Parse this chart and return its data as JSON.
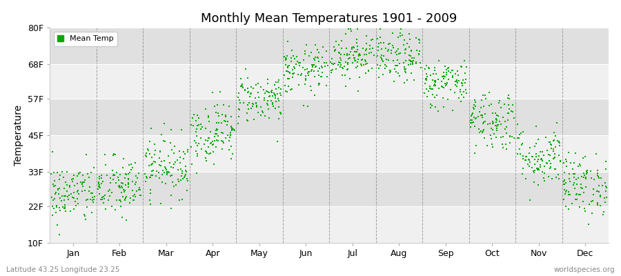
{
  "title": "Monthly Mean Temperatures 1901 - 2009",
  "ylabel": "Temperature",
  "xlabel_bottom_left": "Latitude 43.25 Longitude 23.25",
  "xlabel_bottom_right": "worldspecies.org",
  "ytick_labels": [
    "10F",
    "22F",
    "33F",
    "45F",
    "57F",
    "68F",
    "80F"
  ],
  "ytick_values": [
    10,
    22,
    33,
    45,
    57,
    68,
    80
  ],
  "months": [
    "Jan",
    "Feb",
    "Mar",
    "Apr",
    "May",
    "Jun",
    "Jul",
    "Aug",
    "Sep",
    "Oct",
    "Nov",
    "Dec"
  ],
  "month_positions": [
    0.5,
    1.5,
    2.5,
    3.5,
    4.5,
    5.5,
    6.5,
    7.5,
    8.5,
    9.5,
    10.5,
    11.5
  ],
  "dot_color": "#00aa00",
  "background_color": "#f0f0f0",
  "band_color_dark": "#e0e0e0",
  "band_color_light": "#f0f0f0",
  "legend_label": "Mean Temp",
  "ylim": [
    10,
    80
  ],
  "xlim": [
    0,
    12
  ],
  "n_years": 109,
  "mean_temps_f": [
    26,
    28,
    35,
    46,
    57,
    66,
    71,
    70,
    62,
    50,
    38,
    29
  ],
  "month_stds": [
    5,
    5,
    5,
    5,
    4,
    4,
    4,
    4,
    4,
    5,
    5,
    5
  ],
  "dot_size": 3,
  "title_fontsize": 13,
  "axis_fontsize": 9,
  "ylabel_fontsize": 10
}
